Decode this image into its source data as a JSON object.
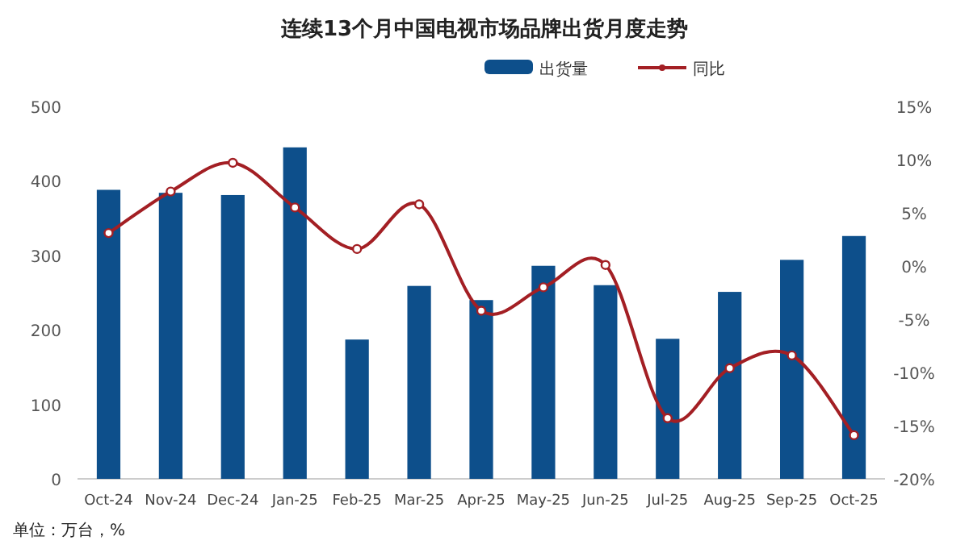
{
  "chart_data": {
    "type": "bar",
    "title": "连续13个月中国电视市场品牌出货月度走势",
    "categories": [
      "Oct-24",
      "Nov-24",
      "Dec-24",
      "Jan-25",
      "Feb-25",
      "Mar-25",
      "Apr-25",
      "May-25",
      "Jun-25",
      "Jul-25",
      "Aug-25",
      "Sep-25",
      "Oct-25"
    ],
    "series": [
      {
        "name": "出货量",
        "color": "#0d4f8b",
        "values": [
          388,
          384,
          381,
          445,
          187,
          259,
          240,
          286,
          260,
          188,
          251,
          294,
          326
        ]
      },
      {
        "name": "同比",
        "type": "line",
        "axis": "y2",
        "color": "#a31f24",
        "marker": "circle",
        "values": [
          3.1,
          7.0,
          9.7,
          5.5,
          1.6,
          5.8,
          -4.2,
          -2.0,
          0.1,
          -14.3,
          -9.6,
          -8.4,
          -15.9
        ]
      }
    ],
    "ylim": [
      0,
      500
    ],
    "yticks": [
      0,
      100,
      200,
      300,
      400,
      500
    ],
    "y2lim": [
      -20,
      15
    ],
    "y2ticks": [
      {
        "value": -20,
        "label": "-20%"
      },
      {
        "value": -15,
        "label": "-15%"
      },
      {
        "value": -10,
        "label": "-10%"
      },
      {
        "value": -5,
        "label": "-5%"
      },
      {
        "value": 0,
        "label": "0%"
      },
      {
        "value": 5,
        "label": "5%"
      },
      {
        "value": 10,
        "label": "10%"
      },
      {
        "value": 15,
        "label": "15%"
      }
    ],
    "legend": "top",
    "grid": false,
    "annotations": [
      "单位：万台，%"
    ]
  }
}
